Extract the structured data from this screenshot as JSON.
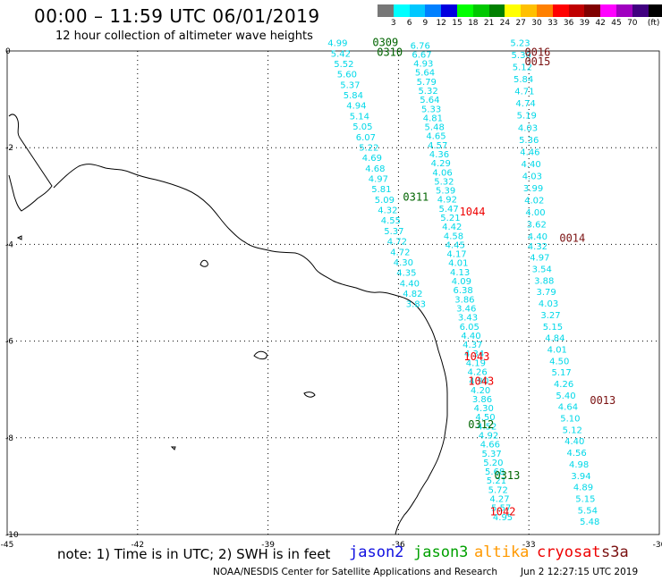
{
  "title": "00:00 – 11:59 UTC 06/01/2019",
  "subtitle": "12 hour collection of altimeter wave heights",
  "colorbar": {
    "colors": [
      "#777777",
      "#00ffff",
      "#00c8ff",
      "#0080ff",
      "#0000e0",
      "#00ff00",
      "#00c800",
      "#008000",
      "#ffff00",
      "#ffc000",
      "#ff8000",
      "#ff0000",
      "#c00000",
      "#800000",
      "#ff00ff",
      "#a000c0",
      "#400080",
      "#000000"
    ],
    "labels": [
      "3",
      "6",
      "9",
      "12",
      "15",
      "18",
      "21",
      "24",
      "27",
      "30",
      "33",
      "36",
      "39",
      "42",
      "45",
      "70",
      "(ft)"
    ]
  },
  "note": "note:  1) Time is in UTC;  2) SWH is in feet",
  "satellites": [
    {
      "name": "jason2",
      "color": "#1010e0"
    },
    {
      "name": "jason3",
      "color": "#00a000"
    },
    {
      "name": "altika",
      "color": "#ff9900"
    },
    {
      "name": "cryosat",
      "color": "#ee0000"
    },
    {
      "name": "s3a",
      "color": "#7a1010"
    }
  ],
  "footer_left": "NOAA/NESDIS Center for Satellite Applications and Research",
  "footer_right": "Jun  2 12:27:15 UTC 2019",
  "map": {
    "lon_range": [
      -45,
      -30
    ],
    "lat_range": [
      -10,
      0
    ],
    "x_ticks": [
      {
        "lon": -45,
        "label": "-45"
      },
      {
        "lon": -42,
        "label": "-42"
      },
      {
        "lon": -39,
        "label": "-39"
      },
      {
        "lon": -36,
        "label": "-36"
      },
      {
        "lon": -33,
        "label": "-33"
      },
      {
        "lon": -30,
        "label": "-30"
      }
    ],
    "y_ticks": [
      {
        "lat": 0,
        "label": "0"
      },
      {
        "lat": -2,
        "label": "-2"
      },
      {
        "lat": -4,
        "label": "-4"
      },
      {
        "lat": -6,
        "label": "-6"
      },
      {
        "lat": -8,
        "label": "-8"
      },
      {
        "lat": -10,
        "label": "-10"
      }
    ],
    "coast_color": "#000000",
    "grid_color": "#000000",
    "wave_color": "#00d8e8"
  },
  "tracks": [
    {
      "lon_start": -37.4,
      "lat_start": 0.1,
      "lon_end": -35.6,
      "lat_end": -5.3,
      "values": [
        "4.99",
        "5.42",
        "5.52",
        "5.60",
        "5.37",
        "5.84",
        "4.94",
        "5.14",
        "5.05",
        "6.07",
        "5.22",
        "4.69",
        "4.68",
        "4.97",
        "5.81",
        "5.09",
        "4.32",
        "4.55",
        "5.37",
        "4.72",
        "4.72",
        "4.30",
        "4.35",
        "4.40",
        "4.82",
        "3.83"
      ]
    },
    {
      "lon_start": -35.5,
      "lat_start": 0.05,
      "lon_end": -33.6,
      "lat_end": -9.7,
      "values": [
        "6.76",
        "6.67",
        "4.93",
        "5.64",
        "5.79",
        "5.32",
        "5.64",
        "5.33",
        "4.81",
        "5.48",
        "4.65",
        "4.57",
        "4.36",
        "4.29",
        "4.06",
        "5.32",
        "5.39",
        "4.92",
        "5.47",
        "5.21",
        "4.42",
        "4.58",
        "4.45",
        "4.17",
        "4.01",
        "4.13",
        "4.09",
        "6.38",
        "3.86",
        "3.46",
        "3.43",
        "6.05",
        "4.40",
        "4.37",
        "4.34",
        "4.19",
        "4.26",
        "4.90",
        "4.20",
        "3.86",
        "4.30",
        "4.50",
        "4.52",
        "4.92",
        "4.66",
        "5.37",
        "5.20",
        "5.68",
        "5.21",
        "5.72",
        "4.27",
        "5.57",
        "4.95"
      ]
    },
    {
      "lon_start": -33.2,
      "lat_start": 0.1,
      "lon_end": -32.8,
      "lat_end": -3.9,
      "values": [
        "5.23",
        "5.30",
        "5.12",
        "5.84",
        "4.71",
        "4.74",
        "5.19",
        "4.03",
        "5.36",
        "4.46",
        "4.40",
        "4.03",
        "3.99",
        "4.02",
        "4.00",
        "3.62",
        "4.40"
      ]
    },
    {
      "lon_start": -32.8,
      "lat_start": -4.1,
      "lon_end": -31.6,
      "lat_end": -9.8,
      "values": [
        "4.32",
        "4.97",
        "3.54",
        "3.88",
        "3.79",
        "4.03",
        "3.27",
        "5.15",
        "4.84",
        "4.01",
        "4.50",
        "5.17",
        "4.26",
        "5.40",
        "4.64",
        "5.10",
        "5.12",
        "4.40",
        "4.56",
        "4.98",
        "3.94",
        "4.89",
        "5.15",
        "5.54",
        "5.48"
      ]
    }
  ],
  "time_labels": [
    {
      "text": "0309",
      "lon": -36.3,
      "lat": 0.1,
      "color": "#006400"
    },
    {
      "text": "0310",
      "lon": -36.2,
      "lat": -0.1,
      "color": "#006400"
    },
    {
      "text": "0016",
      "lon": -32.8,
      "lat": -0.1,
      "color": "#7a1010"
    },
    {
      "text": "0015",
      "lon": -32.8,
      "lat": -0.3,
      "color": "#7a1010"
    },
    {
      "text": "0311",
      "lon": -35.6,
      "lat": -3.1,
      "color": "#006400"
    },
    {
      "text": "1044",
      "lon": -34.3,
      "lat": -3.4,
      "color": "#ee0000"
    },
    {
      "text": "0014",
      "lon": -32.0,
      "lat": -3.95,
      "color": "#7a1010"
    },
    {
      "text": "1043",
      "lon": -34.2,
      "lat": -6.4,
      "color": "#ee0000"
    },
    {
      "text": "1043",
      "lon": -34.1,
      "lat": -6.9,
      "color": "#ee0000"
    },
    {
      "text": "0013",
      "lon": -31.3,
      "lat": -7.3,
      "color": "#7a1010"
    },
    {
      "text": "0312",
      "lon": -34.1,
      "lat": -7.8,
      "color": "#006400"
    },
    {
      "text": "0313",
      "lon": -33.5,
      "lat": -8.85,
      "color": "#006400"
    },
    {
      "text": "1042",
      "lon": -33.6,
      "lat": -9.6,
      "color": "#ee0000"
    }
  ]
}
